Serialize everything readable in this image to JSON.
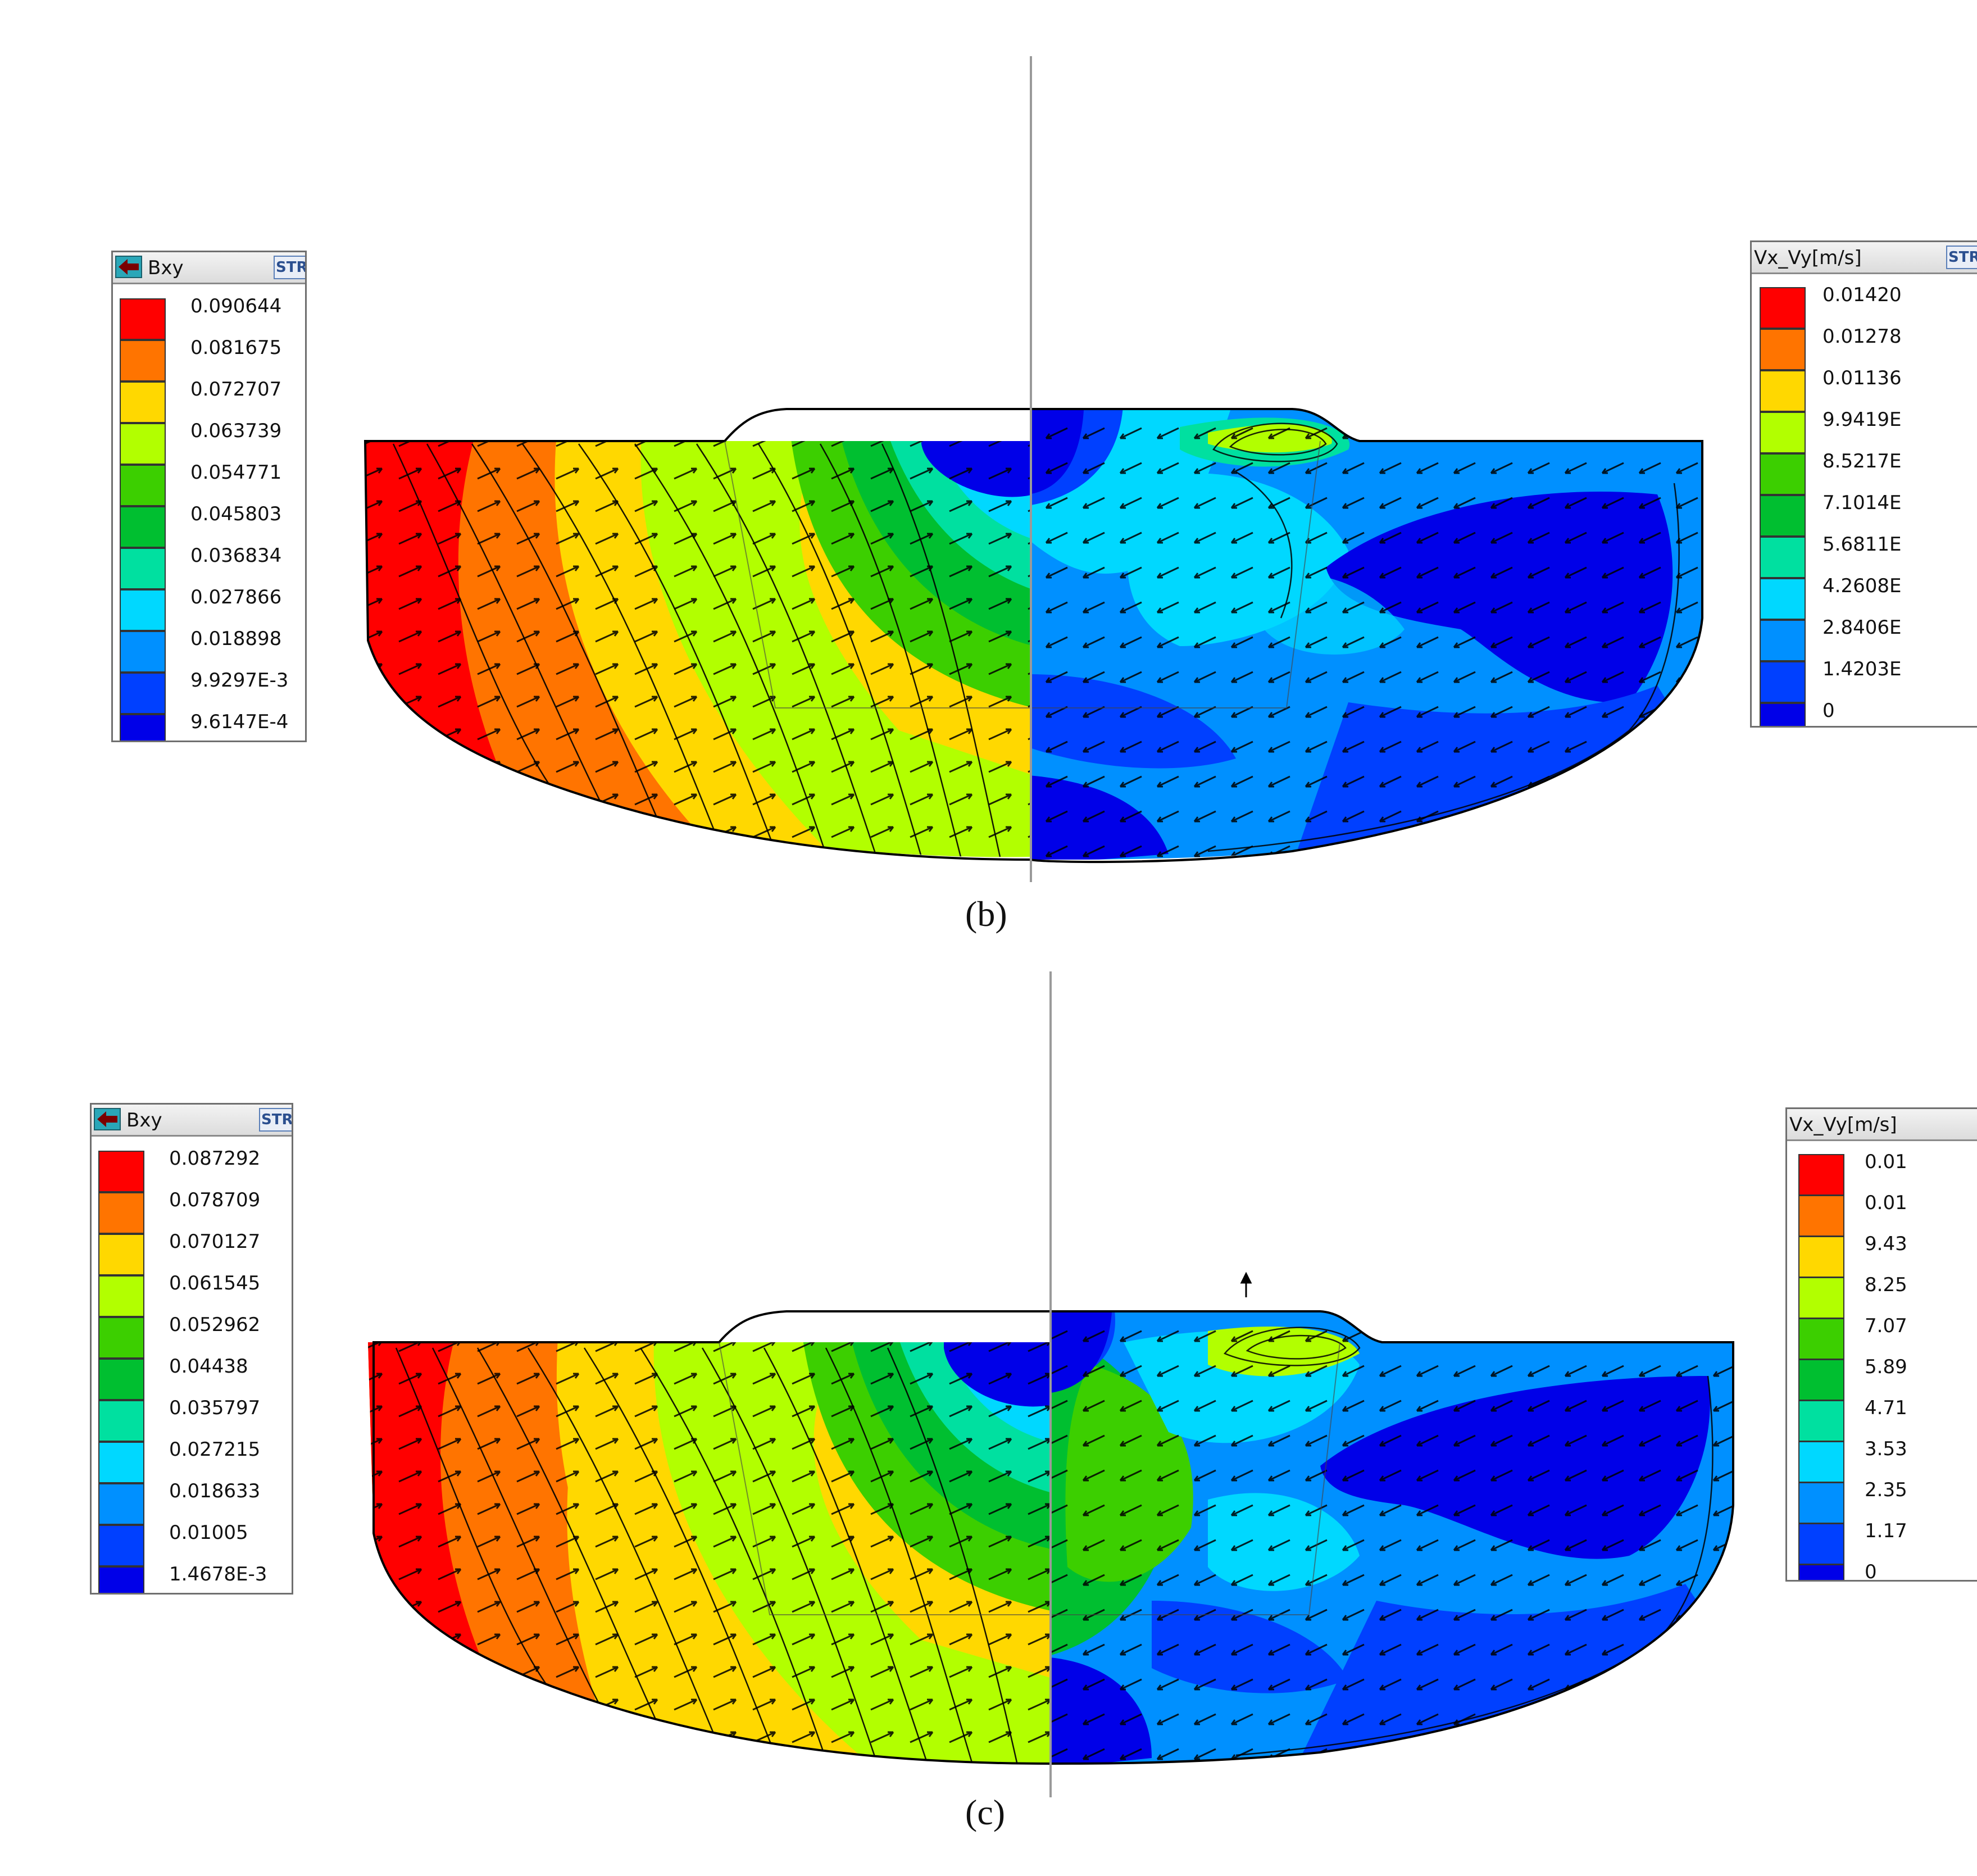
{
  "palette": [
    "#ff0000",
    "#ff7400",
    "#ffd800",
    "#b2ff00",
    "#3ccf00",
    "#00bf30",
    "#00e0a0",
    "#00d8ff",
    "#0090ff",
    "#0040ff",
    "#0000e8"
  ],
  "panels": [
    {
      "caption": "(b)",
      "left_legend": {
        "title": "Bxy",
        "button": "STR",
        "values": [
          "0.090644",
          "0.081675",
          "0.072707",
          "0.063739",
          "0.054771",
          "0.045803",
          "0.036834",
          "0.027866",
          "0.018898",
          "9.9297E-3",
          "9.6147E-4"
        ]
      },
      "right_legend": {
        "title": "Vx_Vy[m/s]",
        "button": "STR",
        "values": [
          "0.01420",
          "0.01278",
          "0.01136",
          "9.9419E",
          "8.5217E",
          "7.1014E",
          "5.6811E",
          "4.2608E",
          "2.8406E",
          "1.4203E",
          "0"
        ]
      }
    },
    {
      "caption": "(c)",
      "left_legend": {
        "title": "Bxy",
        "button": "STR",
        "values": [
          "0.087292",
          "0.078709",
          "0.070127",
          "0.061545",
          "0.052962",
          "0.04438",
          "0.035797",
          "0.027215",
          "0.018633",
          "0.01005",
          "1.4678E-3"
        ]
      },
      "right_legend": {
        "title": "Vx_Vy[m/s]",
        "button": "",
        "values": [
          "0.01",
          "0.01",
          "9.43",
          "8.25",
          "7.07",
          "5.89",
          "4.71",
          "3.53",
          "2.35",
          "1.17",
          "0"
        ]
      }
    }
  ]
}
